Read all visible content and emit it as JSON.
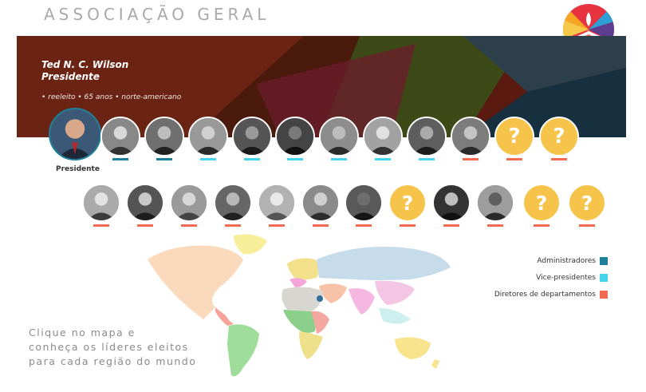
{
  "header": {
    "title": "ASSOCIAÇÃO GERAL"
  },
  "president": {
    "name": "Ted N. C. Wilson",
    "role": "Presidente",
    "meta": "• reeleito • 65 anos • norte-americano",
    "caption": "Presidente"
  },
  "placeholder_symbol": "?",
  "legend": {
    "administradores": "Administradores",
    "vice": "Vice-presidentes",
    "diretores": "Diretores de departamentos"
  },
  "colors": {
    "administradores": "#1d7f9a",
    "vice": "#46d3ee",
    "diretores": "#f26a4f",
    "placeholder": "#f6c44a"
  },
  "cta": "Clique no mapa e\nconheça os líderes eleitos\npara cada região do mundo"
}
